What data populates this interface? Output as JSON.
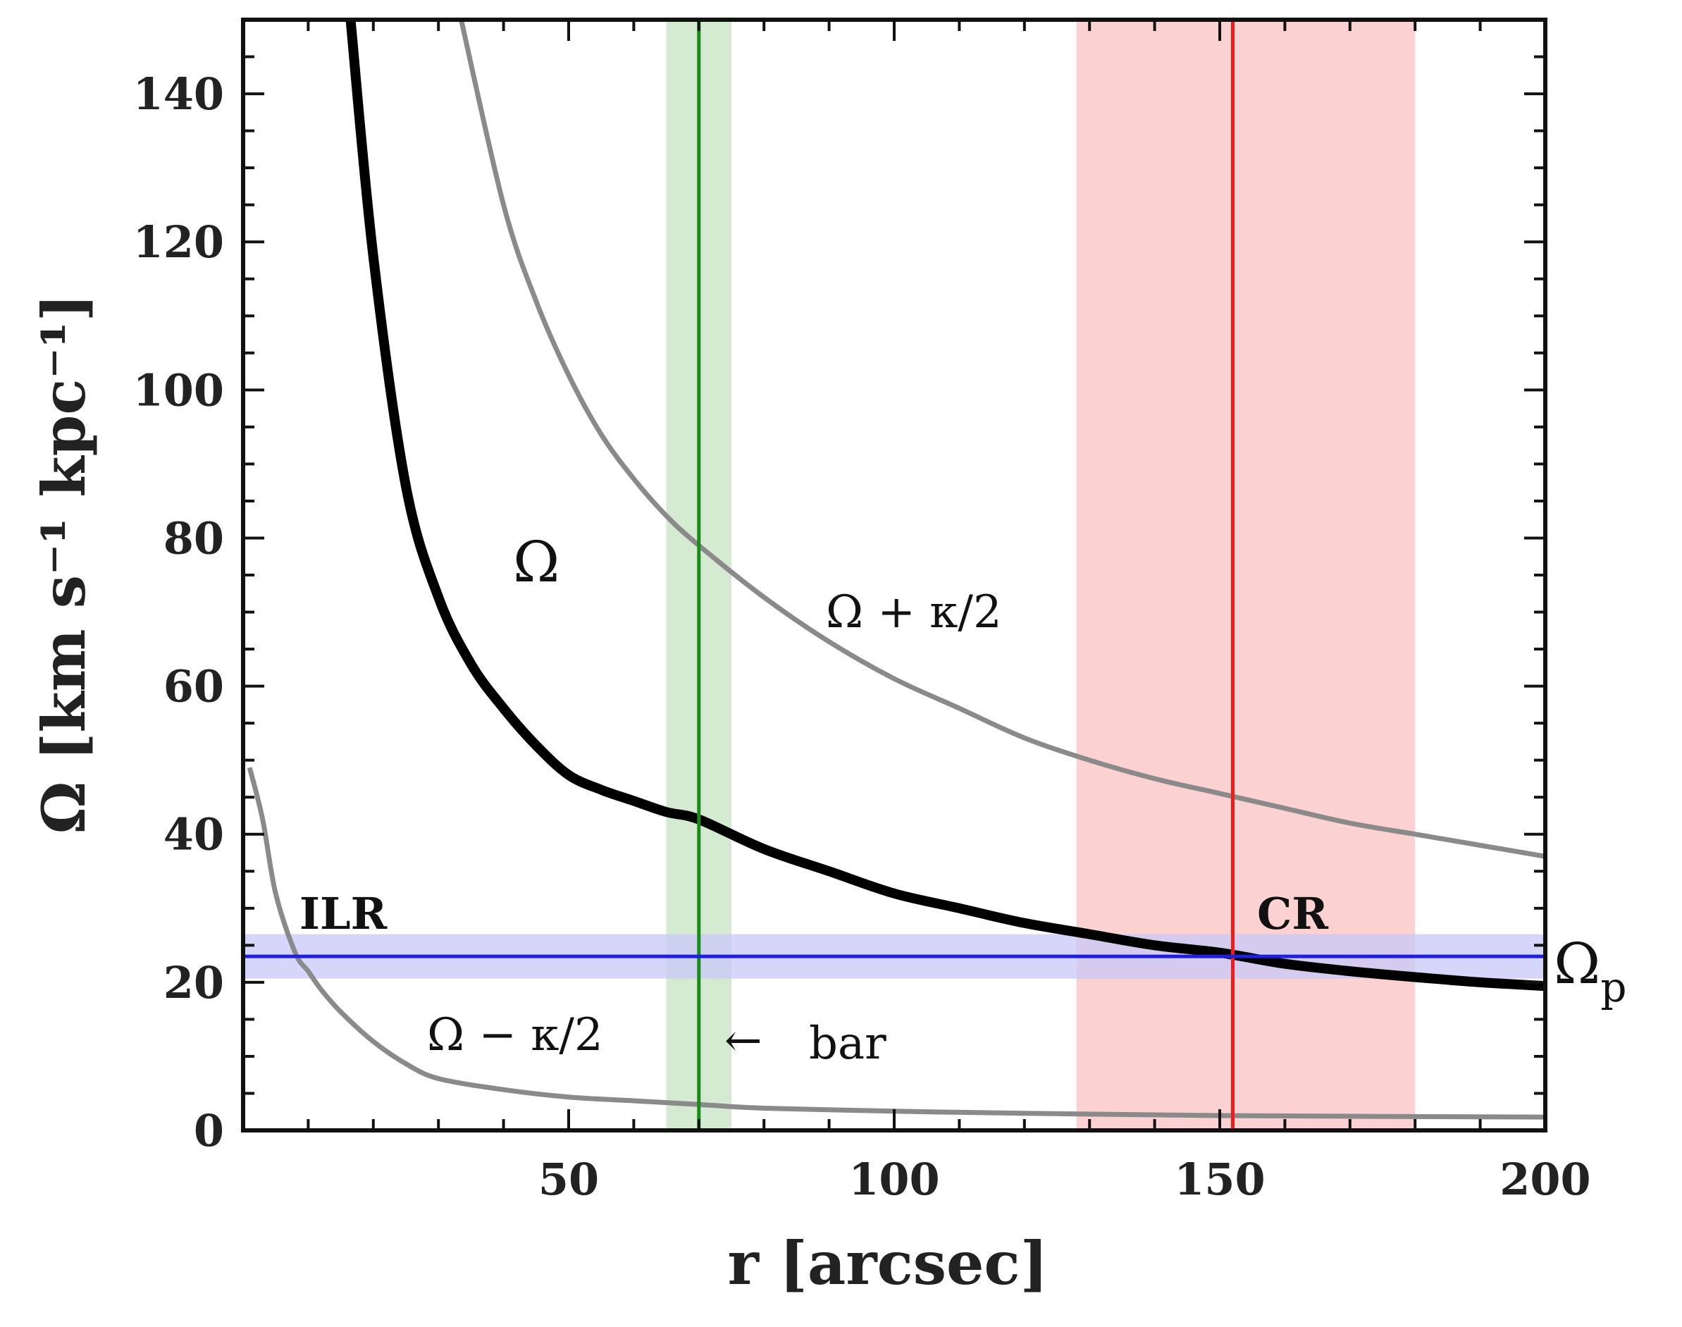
{
  "chart_data": {
    "type": "line",
    "xlabel": "r [arcsec]",
    "ylabel": "Ω [km s⁻¹ kpc⁻¹]",
    "xlim": [
      0,
      200
    ],
    "ylim": [
      0,
      150
    ],
    "xticks": [
      "50",
      "100",
      "150",
      "200"
    ],
    "yticks": [
      "0",
      "20",
      "40",
      "60",
      "80",
      "100",
      "120",
      "140"
    ],
    "colors": {
      "omega": "#000000",
      "kappa_curves": "#8a8a8a",
      "pattern_speed": "#1f1fe0",
      "pattern_band": "#c8c8f8",
      "bar_line": "#1a8a1a",
      "bar_band": "#cfe8cc",
      "corotation_line": "#ee1c1c",
      "corotation_band": "#fbcccc"
    },
    "series": [
      {
        "name": "Ω",
        "label": "Ω",
        "x": [
          16.5,
          20,
          25,
          30,
          35,
          40,
          45,
          50,
          55,
          60,
          65,
          70,
          80,
          90,
          100,
          110,
          120,
          130,
          140,
          150,
          160,
          170,
          180,
          190,
          200
        ],
        "y": [
          150,
          118,
          87,
          72,
          63,
          57,
          52,
          48,
          46,
          44.5,
          43,
          42,
          38,
          35,
          32,
          30,
          28,
          26.5,
          25,
          24,
          22.5,
          21.5,
          20.7,
          20,
          19.5
        ]
      },
      {
        "name": "Ω + κ/2",
        "label": "Ω + κ/2",
        "x": [
          33.5,
          40,
          45,
          50,
          55,
          60,
          65,
          70,
          80,
          90,
          100,
          110,
          120,
          130,
          140,
          150,
          160,
          170,
          180,
          190,
          200
        ],
        "y": [
          150,
          125,
          112,
          102,
          94,
          88,
          83,
          79,
          72,
          66,
          61,
          57,
          53,
          50,
          47.5,
          45.5,
          43.5,
          41.5,
          40,
          38.5,
          37
        ]
      },
      {
        "name": "Ω − κ/2",
        "label": "Ω − κ/2",
        "x": [
          1,
          3,
          5,
          8,
          10,
          12,
          15,
          20,
          25,
          30,
          40,
          50,
          60,
          70,
          80,
          100,
          120,
          150,
          200
        ],
        "y": [
          49,
          42,
          32,
          24,
          21.5,
          19,
          16,
          12,
          9,
          7,
          5.5,
          4.5,
          4,
          3.5,
          3,
          2.6,
          2.3,
          2,
          1.8
        ]
      }
    ],
    "pattern_speed": {
      "label": "Ωp",
      "label_main": "Ω",
      "label_sub": "p",
      "value": 23.5,
      "band": [
        20.5,
        26.5
      ]
    },
    "bar": {
      "label": "bar",
      "arrow": "←",
      "r": 70,
      "band": [
        65,
        75
      ]
    },
    "corotation": {
      "label": "CR",
      "r": 152,
      "band": [
        128,
        180
      ]
    },
    "ilr_label": "ILR"
  }
}
